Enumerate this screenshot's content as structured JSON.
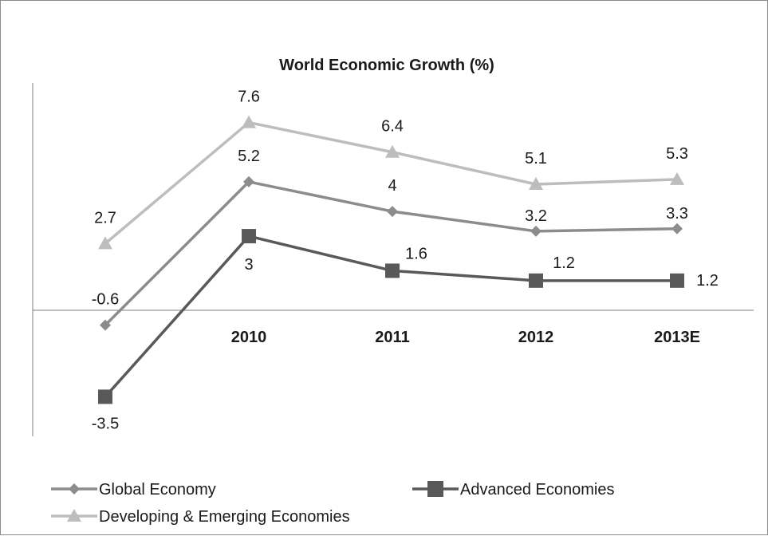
{
  "chart_data": {
    "type": "line",
    "title": "World Economic Growth (%)",
    "categories": [
      "",
      "2010",
      "2011",
      "2012",
      "2013E"
    ],
    "series": [
      {
        "name": "Developing & Emerging Economies",
        "values": [
          2.7,
          7.6,
          6.4,
          5.1,
          5.3
        ],
        "color": "#bdbdbd",
        "marker": "triangle"
      },
      {
        "name": "Global Economy",
        "values": [
          -0.6,
          5.2,
          4,
          3.2,
          3.3
        ],
        "color": "#8c8c8c",
        "marker": "diamond"
      },
      {
        "name": "Advanced Economies",
        "values": [
          -3.5,
          3,
          1.6,
          1.2,
          1.2
        ],
        "color": "#595959",
        "marker": "square"
      }
    ],
    "data_labels": [
      [
        "2.7",
        "7.6",
        "6.4",
        "5.1",
        "5.3"
      ],
      [
        "-0.6",
        "5.2",
        "4",
        "3.2",
        "3.3"
      ],
      [
        "-3.5",
        "3",
        "1.6",
        "1.2",
        "1.2"
      ]
    ],
    "ylim": [
      -5.1,
      9.2
    ],
    "grid": false,
    "legend_position": "bottom-left",
    "xlabel": "",
    "ylabel": ""
  }
}
